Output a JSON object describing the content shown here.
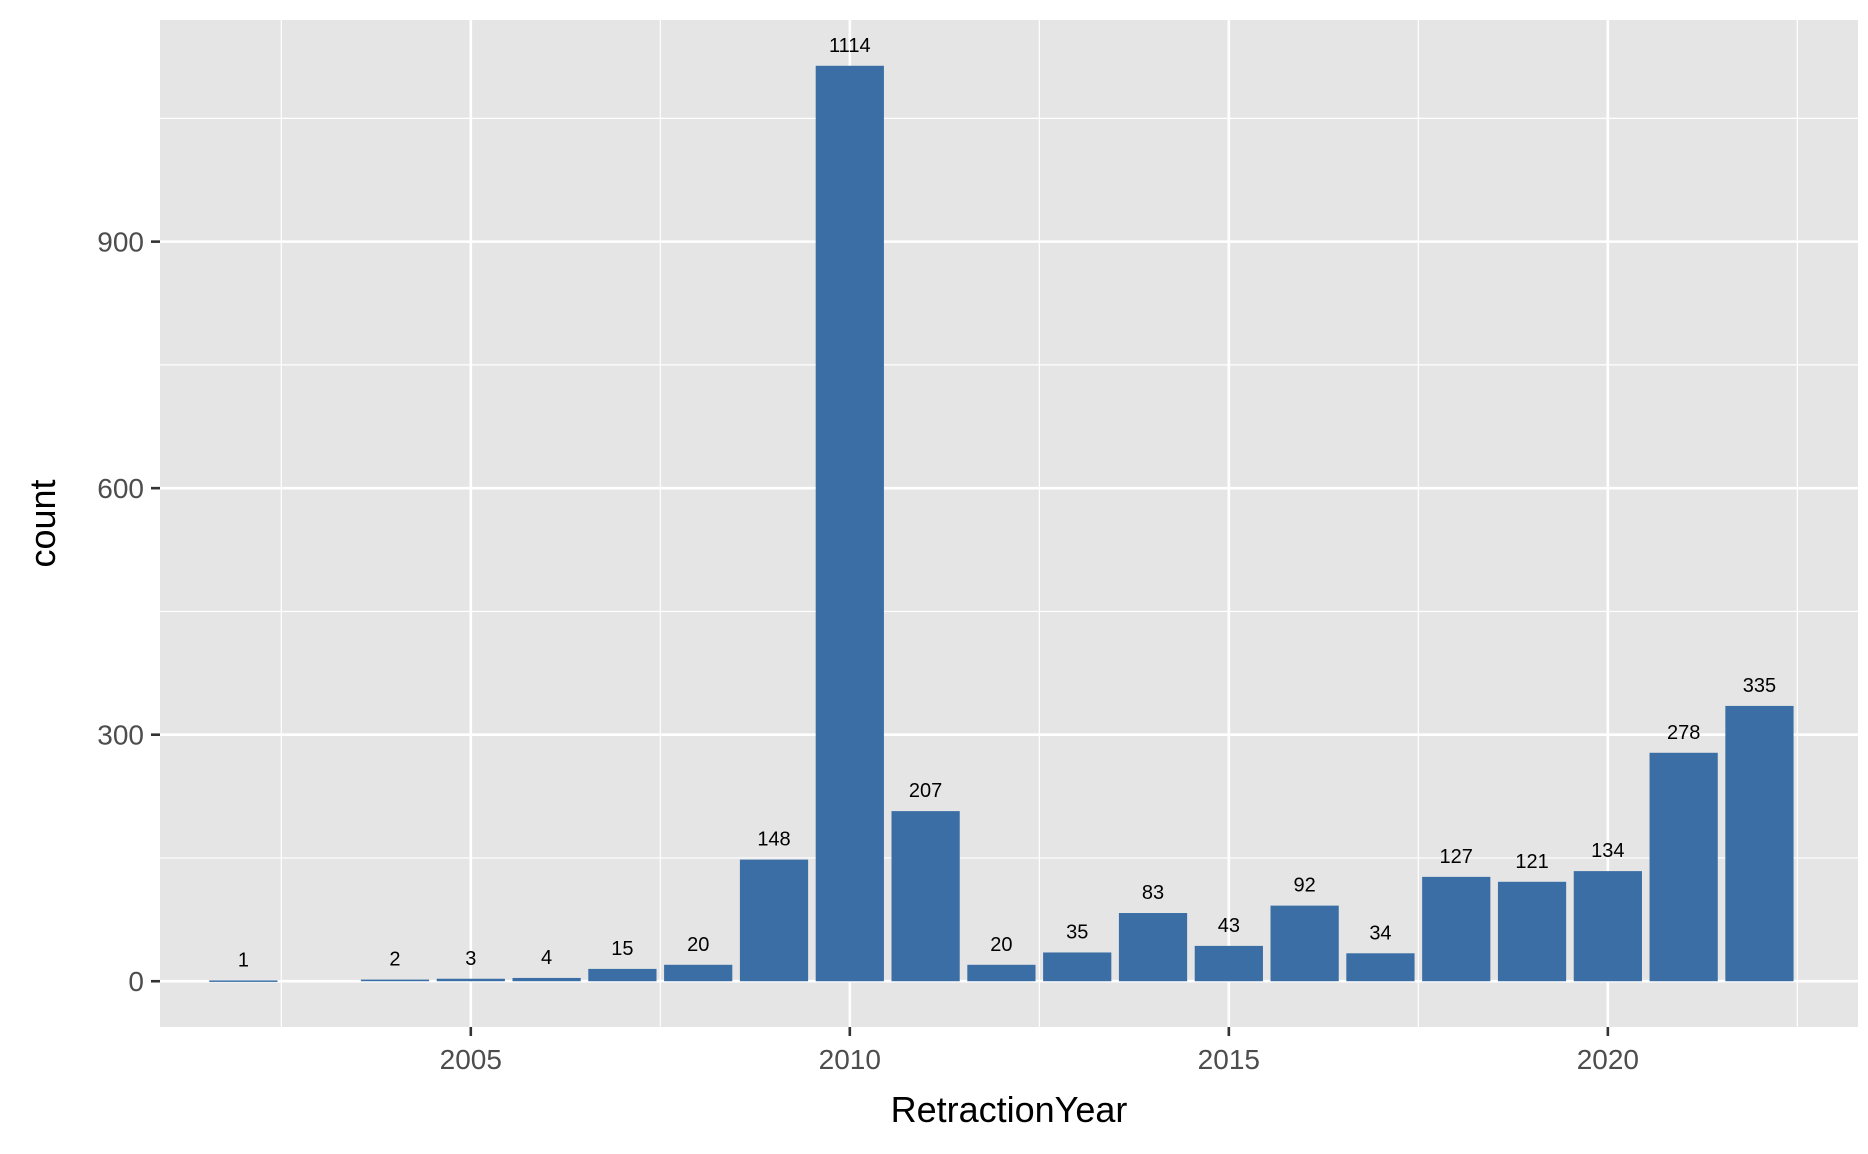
{
  "chart_data": {
    "type": "bar",
    "xlabel": "RetractionYear",
    "ylabel": "count",
    "x": [
      2002,
      2004,
      2005,
      2006,
      2007,
      2008,
      2009,
      2010,
      2011,
      2012,
      2013,
      2014,
      2015,
      2016,
      2017,
      2018,
      2019,
      2020,
      2021,
      2022
    ],
    "values": [
      1,
      2,
      3,
      4,
      15,
      20,
      148,
      1114,
      207,
      20,
      35,
      83,
      43,
      92,
      34,
      127,
      121,
      134,
      278,
      335
    ],
    "xlim": [
      2000.9,
      2023.3
    ],
    "ylim": [
      -55.7,
      1169.7
    ],
    "x_ticks": [
      2005,
      2010,
      2015,
      2020
    ],
    "y_ticks": [
      0,
      300,
      600,
      900
    ],
    "grid": true,
    "legend": "none",
    "colors": {
      "bar": "#3a6ea5",
      "panel_background": "#e5e5e5",
      "grid": "#ffffff"
    }
  }
}
